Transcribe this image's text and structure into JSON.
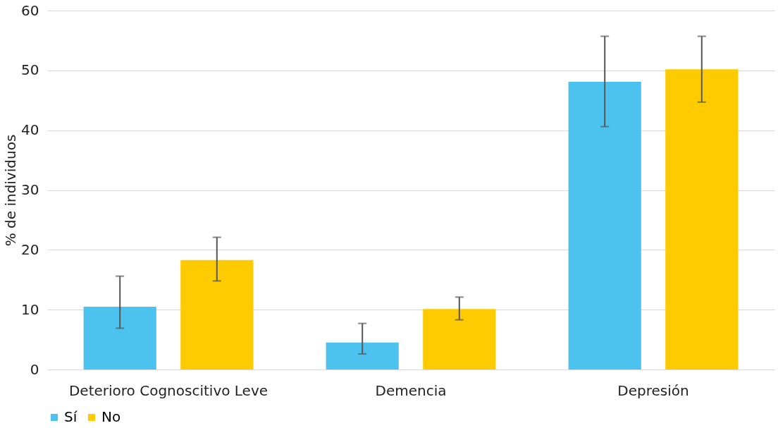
{
  "chart_data": {
    "type": "bar",
    "ylabel": "% de individuos",
    "categories": [
      "Deterioro Cognoscitivo Leve",
      "Demencia",
      "Depresión"
    ],
    "series": [
      {
        "name": "Sí",
        "color": "#4cc3ef",
        "values": [
          10.5,
          4.5,
          48.1
        ],
        "errors": [
          [
            6.9,
            15.6
          ],
          [
            2.6,
            7.7
          ],
          [
            40.6,
            55.7
          ]
        ]
      },
      {
        "name": "No",
        "color": "#fecb00",
        "values": [
          18.3,
          10.1,
          50.2
        ],
        "errors": [
          [
            14.8,
            22.1
          ],
          [
            8.3,
            12.1
          ],
          [
            44.7,
            55.7
          ]
        ]
      }
    ],
    "ylim": [
      0,
      60
    ],
    "yticks": [
      0,
      10,
      20,
      30,
      40,
      50,
      60
    ],
    "grid": "y",
    "legend": "bottom"
  }
}
